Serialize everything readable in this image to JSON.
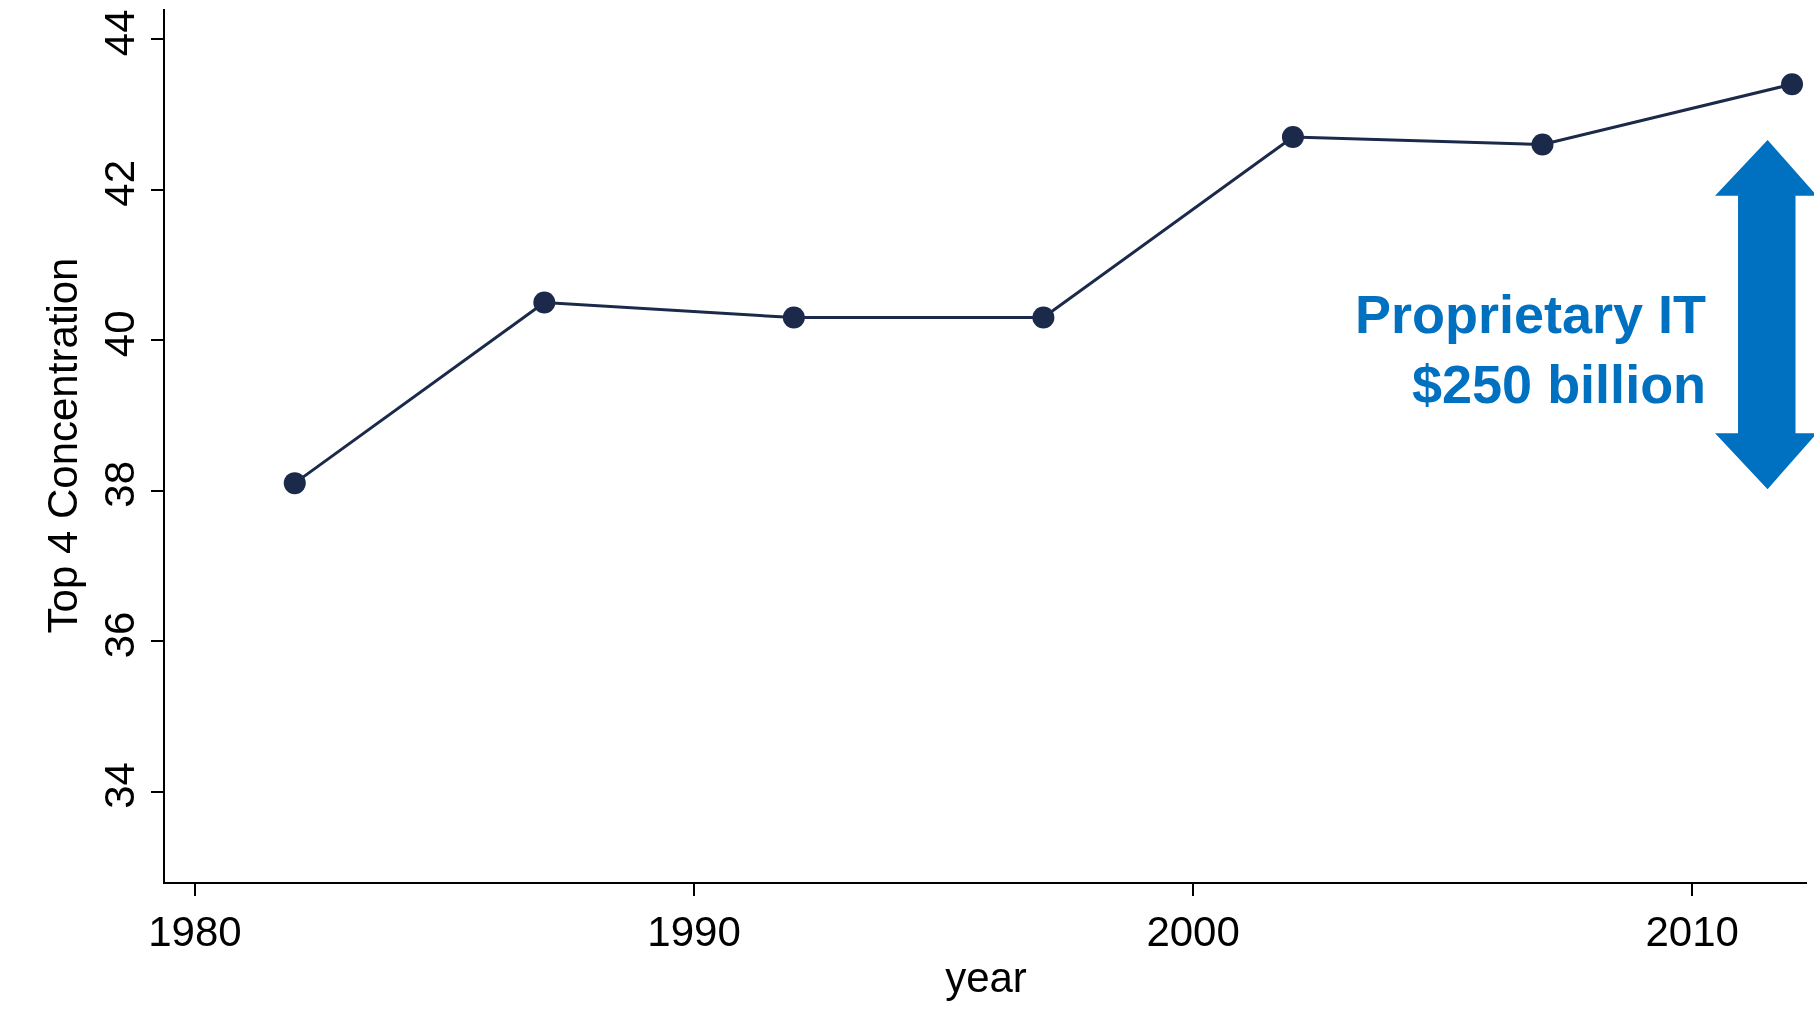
{
  "chart_data": {
    "type": "line",
    "xlabel": "year",
    "ylabel": "Top 4 Concentration",
    "x": [
      1982,
      1987,
      1992,
      1997,
      2002,
      2007,
      2012
    ],
    "series": [
      {
        "color": "#1b2a4a",
        "values": [
          38.1,
          40.5,
          40.3,
          40.3,
          42.7,
          42.6,
          43.4
        ]
      }
    ],
    "xlim": [
      1979.4,
      2012.3
    ],
    "ylim": [
      32.8,
      44.4
    ],
    "xticks": [
      1980,
      1990,
      2000,
      2010
    ],
    "yticks": [
      34,
      36,
      38,
      40,
      42,
      44
    ],
    "marker": "circle",
    "line_style": "solid",
    "annotations": [
      "Proprietary IT\n$250 billion"
    ]
  }
}
